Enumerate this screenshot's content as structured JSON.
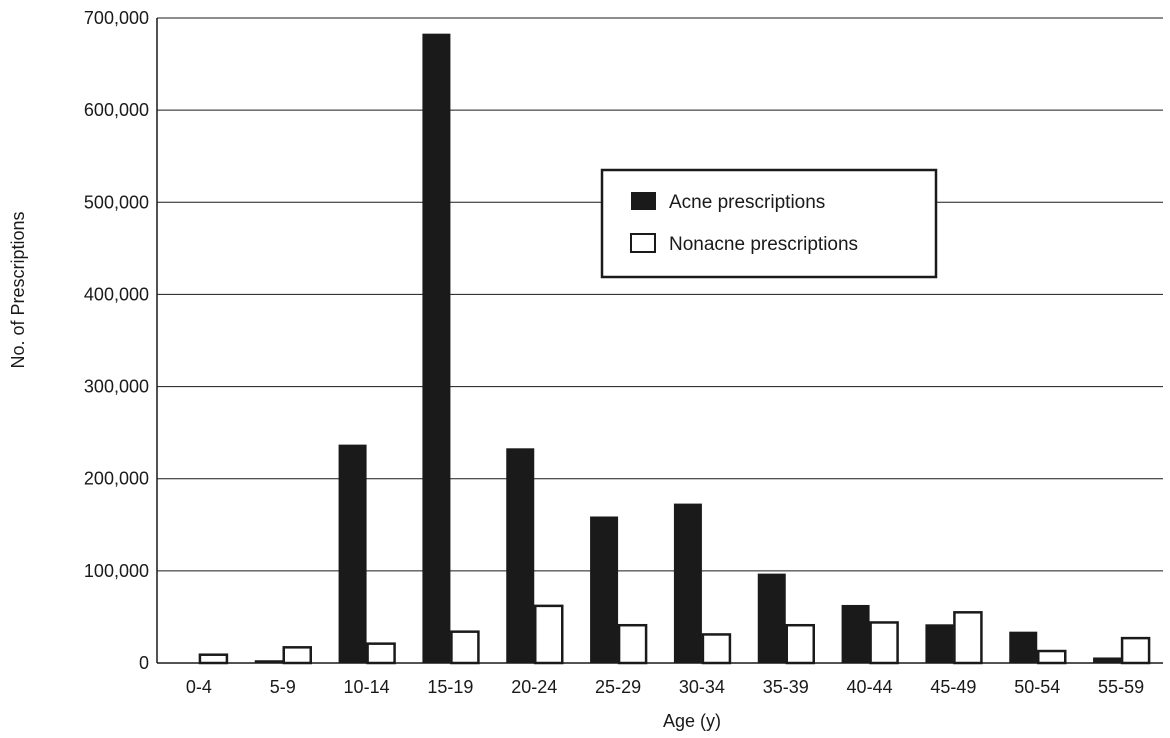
{
  "chart_data": {
    "type": "bar",
    "xlabel": "Age (y)",
    "ylabel": "No. of Prescriptions",
    "ylim": [
      0,
      700000
    ],
    "yticks": [
      0,
      100000,
      200000,
      300000,
      400000,
      500000,
      600000,
      700000
    ],
    "ytick_labels": [
      "0",
      "100,000",
      "200,000",
      "300,000",
      "400,000",
      "500,000",
      "600,000",
      "700,000"
    ],
    "grid": true,
    "legend_position": "center-right",
    "categories": [
      "0-4",
      "5-9",
      "10-14",
      "15-19",
      "20-24",
      "25-29",
      "30-34",
      "35-39",
      "40-44",
      "45-49",
      "50-54",
      "55-59"
    ],
    "series": [
      {
        "name": "Acne prescriptions",
        "color": "#1a1a1a",
        "values": [
          0,
          3000,
          237000,
          683000,
          233000,
          159000,
          173000,
          97000,
          63000,
          42000,
          34000,
          6000
        ]
      },
      {
        "name": "Nonacne prescriptions",
        "color": "#ffffff",
        "values": [
          9000,
          17000,
          21000,
          34000,
          62000,
          41000,
          31000,
          41000,
          44000,
          55000,
          13000,
          27000
        ]
      }
    ]
  }
}
